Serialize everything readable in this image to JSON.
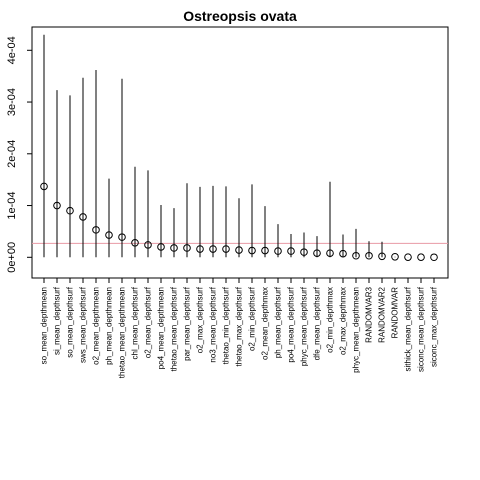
{
  "chart_data": {
    "type": "scatter",
    "title": "Ostreopsis ovata",
    "xlabel": "",
    "ylabel": "",
    "ylim": [
      -4e-05,
      0.000445
    ],
    "yticks": [
      0,
      0.0001,
      0.0002,
      0.0003,
      0.0004
    ],
    "ytick_labels": [
      "0e+00",
      "1e-04",
      "2e-04",
      "3e-04",
      "4e-04"
    ],
    "reference_line": 2.7e-05,
    "grid": false,
    "colors": {
      "points": "#000000",
      "whiskers": "#000000",
      "reference_line": "#e899a4"
    },
    "categories": [
      "so_mean_depthmean",
      "si_mean_depthsurf",
      "so_mean_depthsurf",
      "sws_mean_depthsurf",
      "o2_mean_depthmean",
      "ph_mean_depthmean",
      "thetao_mean_depthmean",
      "chl_mean_depthsurf",
      "o2_mean_depthsurf",
      "po4_mean_depthmean",
      "thetao_mean_depthsurf",
      "par_mean_depthsurf",
      "o2_max_depthsurf",
      "no3_mean_depthsurf",
      "thetao_min_depthsurf",
      "thetao_max_depthsurf",
      "o2_min_depthsurf",
      "o2_mean_depthmax",
      "ph_mean_depthsurf",
      "po4_mean_depthsurf",
      "phyc_mean_depthsurf",
      "dfe_mean_depthsurf",
      "o2_min_depthmax",
      "o2_max_depthmax",
      "phyc_mean_depthmean",
      "RANDOMVAR3",
      "RANDOMVAR2",
      "RANDOMVAR",
      "sithick_mean_depthsurf",
      "siconc_mean_depthsurf",
      "siconc_max_depthsurf"
    ],
    "values": [
      0.000137,
      0.0001,
      9e-05,
      7.8e-05,
      5.3e-05,
      4.3e-05,
      3.9e-05,
      2.8e-05,
      2.4e-05,
      2e-05,
      1.8e-05,
      1.8e-05,
      1.6e-05,
      1.6e-05,
      1.6e-05,
      1.4e-05,
      1.3e-05,
      1.3e-05,
      1.2e-05,
      1.2e-05,
      1e-05,
      8e-06,
      8e-06,
      7e-06,
      3e-06,
      3e-06,
      2e-06,
      1e-06,
      3e-07,
      2e-07,
      1e-07
    ],
    "upper": [
      0.00043,
      0.000323,
      0.000313,
      0.000347,
      0.000362,
      0.000152,
      0.000345,
      0.000175,
      0.000168,
      0.000101,
      9.5e-05,
      0.000143,
      0.000136,
      0.000138,
      0.000137,
      0.000114,
      0.000141,
      9.9e-05,
      6.4e-05,
      4.5e-05,
      4.8e-05,
      4.1e-05,
      0.000146,
      4.4e-05,
      5.5e-05,
      3.1e-05,
      3e-05,
      1e-06,
      3e-07,
      2e-07,
      1e-07
    ]
  }
}
